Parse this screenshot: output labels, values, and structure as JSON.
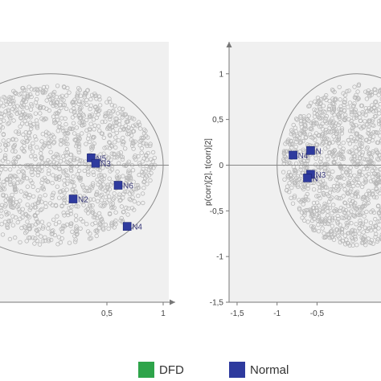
{
  "colors": {
    "dfd": "#2ea44a",
    "normal": "#2e3a9e",
    "cloud": "#b8b8b8",
    "plot_bg": "#f0f0f0",
    "axis": "#777777"
  },
  "legend": [
    {
      "label": "DFD",
      "color_key": "dfd"
    },
    {
      "label": "Normal",
      "color_key": "normal"
    }
  ],
  "chart_data": [
    {
      "type": "scatter",
      "title": "",
      "xlabel": "",
      "ylabel": "",
      "xlim": [
        -0.45,
        1.05
      ],
      "ylim": [
        -1.5,
        1.35
      ],
      "x_ticks": [
        {
          "value": 0.5,
          "label": "0,5"
        },
        {
          "value": 1,
          "label": "1"
        }
      ],
      "y_ticks": [],
      "ellipse": {
        "cx": 0,
        "cy": 0,
        "rx": 1,
        "ry": 1
      },
      "series": [
        {
          "name": "Normal",
          "points": [
            {
              "label": "N5",
              "x": 0.36,
              "y": 0.08
            },
            {
              "label": "N3",
              "x": 0.4,
              "y": 0.02
            },
            {
              "label": "N2",
              "x": 0.2,
              "y": -0.37
            },
            {
              "label": "N6",
              "x": 0.6,
              "y": -0.22
            },
            {
              "label": "N4",
              "x": 0.68,
              "y": -0.67
            }
          ]
        }
      ]
    },
    {
      "type": "scatter",
      "title": "",
      "xlabel": "",
      "ylabel": "p(corr)[2], t(corr)[2]",
      "xlim": [
        -1.6,
        0.3
      ],
      "ylim": [
        -1.5,
        1.35
      ],
      "x_ticks": [
        {
          "value": -1.5,
          "label": "-1,5"
        },
        {
          "value": -1,
          "label": "-1"
        },
        {
          "value": -0.5,
          "label": "-0,5"
        }
      ],
      "y_ticks": [
        {
          "value": 1,
          "label": "1"
        },
        {
          "value": 0.5,
          "label": "0,5"
        },
        {
          "value": 0,
          "label": "0"
        },
        {
          "value": -0.5,
          "label": "-0,5"
        },
        {
          "value": -1,
          "label": "-1"
        },
        {
          "value": -1.5,
          "label": "-1,5"
        }
      ],
      "ellipse": {
        "cx": 0,
        "cy": 0,
        "rx": 1,
        "ry": 1
      },
      "series": [
        {
          "name": "Normal",
          "points": [
            {
              "label": "N4",
              "x": -0.8,
              "y": 0.11
            },
            {
              "label": "N",
              "x": -0.58,
              "y": 0.16
            },
            {
              "label": "N3",
              "x": -0.58,
              "y": -0.1
            },
            {
              "label": "N",
              "x": -0.62,
              "y": -0.14
            }
          ]
        }
      ]
    }
  ]
}
